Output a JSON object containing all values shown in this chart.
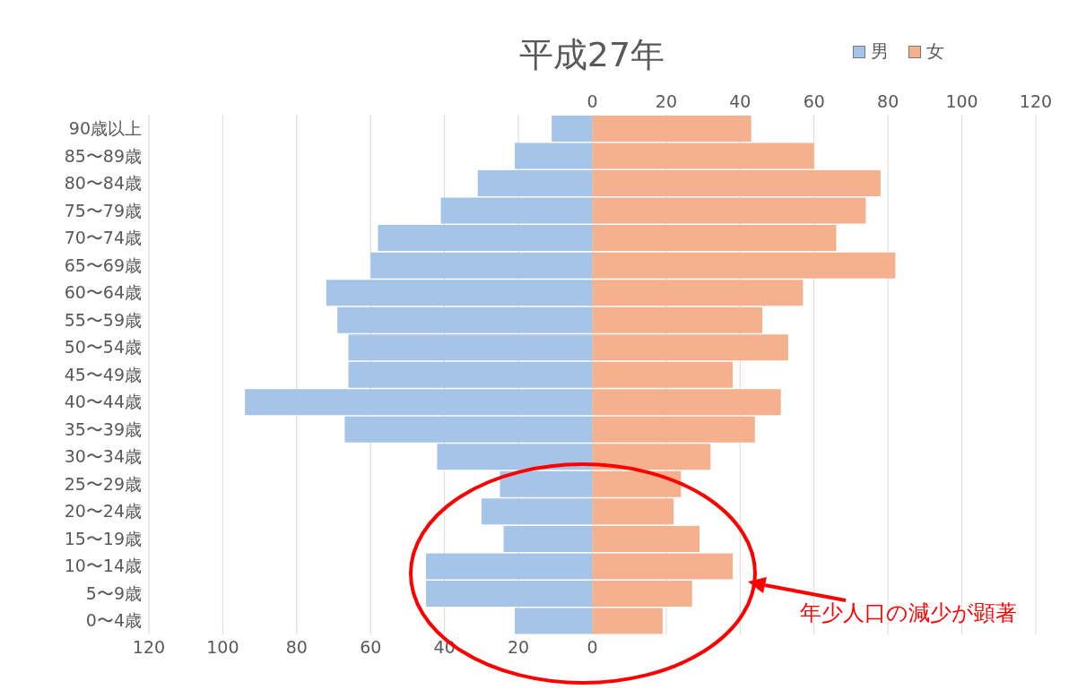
{
  "chart_data": {
    "type": "bar",
    "orientation": "horizontal",
    "title": "平成27年",
    "categories": [
      "90歳以上",
      "85〜89歳",
      "80〜84歳",
      "75〜79歳",
      "70〜74歳",
      "65〜69歳",
      "60〜64歳",
      "55〜59歳",
      "50〜54歳",
      "45〜49歳",
      "40〜44歳",
      "35〜39歳",
      "30〜34歳",
      "25〜29歳",
      "20〜24歳",
      "15〜19歳",
      "10〜14歳",
      "5〜9歳",
      "0〜4歳"
    ],
    "series": [
      {
        "name": "男",
        "color": "#a6c4e8",
        "values": [
          -11,
          -21,
          -31,
          -41,
          -58,
          -60,
          -72,
          -69,
          -66,
          -66,
          -94,
          -67,
          -42,
          -25,
          -30,
          -24,
          -45,
          -45,
          -21
        ]
      },
      {
        "name": "女",
        "color": "#f5b08e",
        "values": [
          43,
          60,
          78,
          74,
          66,
          82,
          57,
          46,
          53,
          38,
          51,
          44,
          32,
          24,
          22,
          29,
          38,
          27,
          19
        ]
      }
    ],
    "xlim": [
      -120,
      120
    ],
    "xticks": [
      {
        "value": -120,
        "label": "120"
      },
      {
        "value": -100,
        "label": "100"
      },
      {
        "value": -80,
        "label": "80"
      },
      {
        "value": -60,
        "label": "60"
      },
      {
        "value": -40,
        "label": "40"
      },
      {
        "value": -20,
        "label": "20"
      },
      0
    ],
    "x2lim": [
      -120,
      120
    ],
    "x2ticks": [
      0,
      20,
      40,
      60,
      80,
      100,
      120
    ],
    "stacked": true,
    "grid": true,
    "legend": "top right",
    "annotations": [
      "年少人口の減少が顕著"
    ]
  }
}
